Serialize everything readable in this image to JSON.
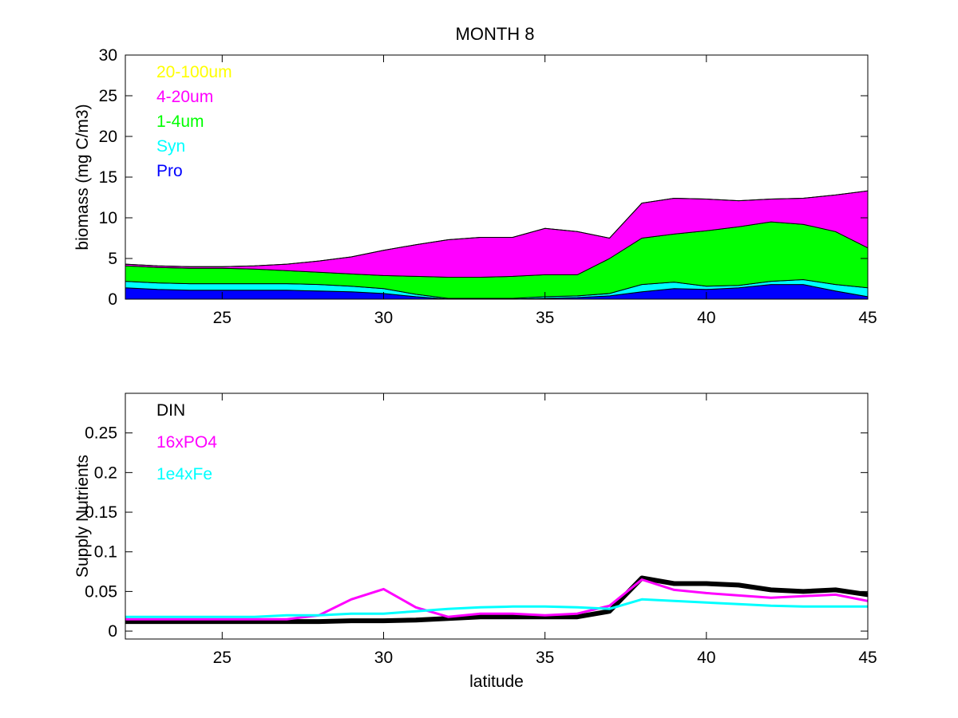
{
  "figure_title": "MONTH 8",
  "chart_data": [
    {
      "type": "area",
      "stacked": true,
      "title": "MONTH 8",
      "xlabel": "",
      "ylabel": "biomass (mg C/m3)",
      "xlim": [
        22,
        45
      ],
      "ylim": [
        0,
        30
      ],
      "xticks": [
        25,
        30,
        35,
        40,
        45
      ],
      "yticks": [
        0,
        5,
        10,
        15,
        20,
        25,
        30
      ],
      "grid": false,
      "legend_position": "top-left",
      "x": [
        22,
        23,
        24,
        25,
        26,
        27,
        28,
        29,
        30,
        31,
        32,
        33,
        34,
        35,
        36,
        37,
        38,
        39,
        40,
        41,
        42,
        43,
        44,
        45
      ],
      "series": [
        {
          "name": "Pro",
          "color": "#0000ff",
          "values": [
            1.4,
            1.2,
            1.1,
            1.1,
            1.1,
            1.1,
            1.0,
            0.9,
            0.7,
            0.3,
            0.0,
            0.0,
            0.0,
            0.1,
            0.2,
            0.4,
            0.9,
            1.3,
            1.2,
            1.4,
            1.8,
            1.8,
            1.0,
            0.3
          ]
        },
        {
          "name": "Syn",
          "color": "#00ffff",
          "values": [
            0.8,
            0.8,
            0.8,
            0.8,
            0.8,
            0.8,
            0.8,
            0.7,
            0.6,
            0.3,
            0.1,
            0.1,
            0.1,
            0.2,
            0.2,
            0.3,
            0.9,
            0.8,
            0.4,
            0.3,
            0.4,
            0.6,
            0.8,
            1.1
          ]
        },
        {
          "name": "1-4um",
          "color": "#00ff00",
          "values": [
            1.9,
            1.9,
            1.9,
            1.9,
            1.8,
            1.6,
            1.5,
            1.5,
            1.6,
            2.2,
            2.6,
            2.6,
            2.7,
            2.7,
            2.6,
            4.3,
            5.7,
            5.9,
            6.8,
            7.2,
            7.3,
            6.8,
            6.5,
            4.9
          ]
        },
        {
          "name": "4-20um",
          "color": "#ff00ff",
          "values": [
            0.2,
            0.2,
            0.2,
            0.2,
            0.4,
            0.8,
            1.4,
            2.1,
            3.1,
            3.9,
            4.6,
            4.9,
            4.8,
            5.7,
            5.3,
            2.5,
            4.3,
            4.4,
            3.9,
            3.2,
            2.8,
            3.2,
            4.5,
            7.0
          ]
        },
        {
          "name": "20-100um",
          "color": "#ffff00",
          "values": [
            0,
            0,
            0,
            0,
            0,
            0,
            0,
            0,
            0,
            0,
            0,
            0,
            0,
            0,
            0,
            0,
            0,
            0,
            0,
            0,
            0,
            0,
            0,
            0
          ]
        }
      ]
    },
    {
      "type": "line",
      "title": "",
      "xlabel": "latitude",
      "ylabel": "Supply Nutrients",
      "xlim": [
        22,
        45
      ],
      "ylim": [
        -0.01,
        0.3
      ],
      "xticks": [
        25,
        30,
        35,
        40,
        45
      ],
      "yticks": [
        0,
        0.05,
        0.1,
        0.15,
        0.2,
        0.25
      ],
      "ytick_labels": [
        "0",
        "0.05",
        "0.1",
        "0.15",
        "0.2",
        "0.25"
      ],
      "grid": false,
      "legend_position": "top-left",
      "x": [
        22,
        23,
        24,
        25,
        26,
        27,
        28,
        29,
        30,
        31,
        32,
        33,
        34,
        35,
        36,
        37,
        38,
        39,
        40,
        41,
        42,
        43,
        44,
        45
      ],
      "series": [
        {
          "name": "DIN",
          "color": "#000000",
          "width": 6,
          "values": [
            0.012,
            0.012,
            0.012,
            0.012,
            0.012,
            0.012,
            0.012,
            0.013,
            0.013,
            0.014,
            0.016,
            0.018,
            0.018,
            0.018,
            0.018,
            0.025,
            0.067,
            0.06,
            0.06,
            0.058,
            0.052,
            0.05,
            0.052,
            0.046
          ]
        },
        {
          "name": "16xPO4",
          "color": "#ff00ff",
          "width": 3,
          "values": [
            0.015,
            0.015,
            0.015,
            0.015,
            0.015,
            0.015,
            0.02,
            0.04,
            0.053,
            0.03,
            0.018,
            0.022,
            0.022,
            0.02,
            0.022,
            0.032,
            0.065,
            0.052,
            0.048,
            0.045,
            0.042,
            0.044,
            0.046,
            0.038
          ]
        },
        {
          "name": "1e4xFe",
          "color": "#00ffff",
          "width": 3,
          "values": [
            0.018,
            0.018,
            0.018,
            0.018,
            0.018,
            0.02,
            0.02,
            0.022,
            0.022,
            0.025,
            0.028,
            0.03,
            0.031,
            0.031,
            0.03,
            0.028,
            0.04,
            0.038,
            0.036,
            0.034,
            0.032,
            0.031,
            0.031,
            0.031
          ]
        }
      ]
    }
  ]
}
